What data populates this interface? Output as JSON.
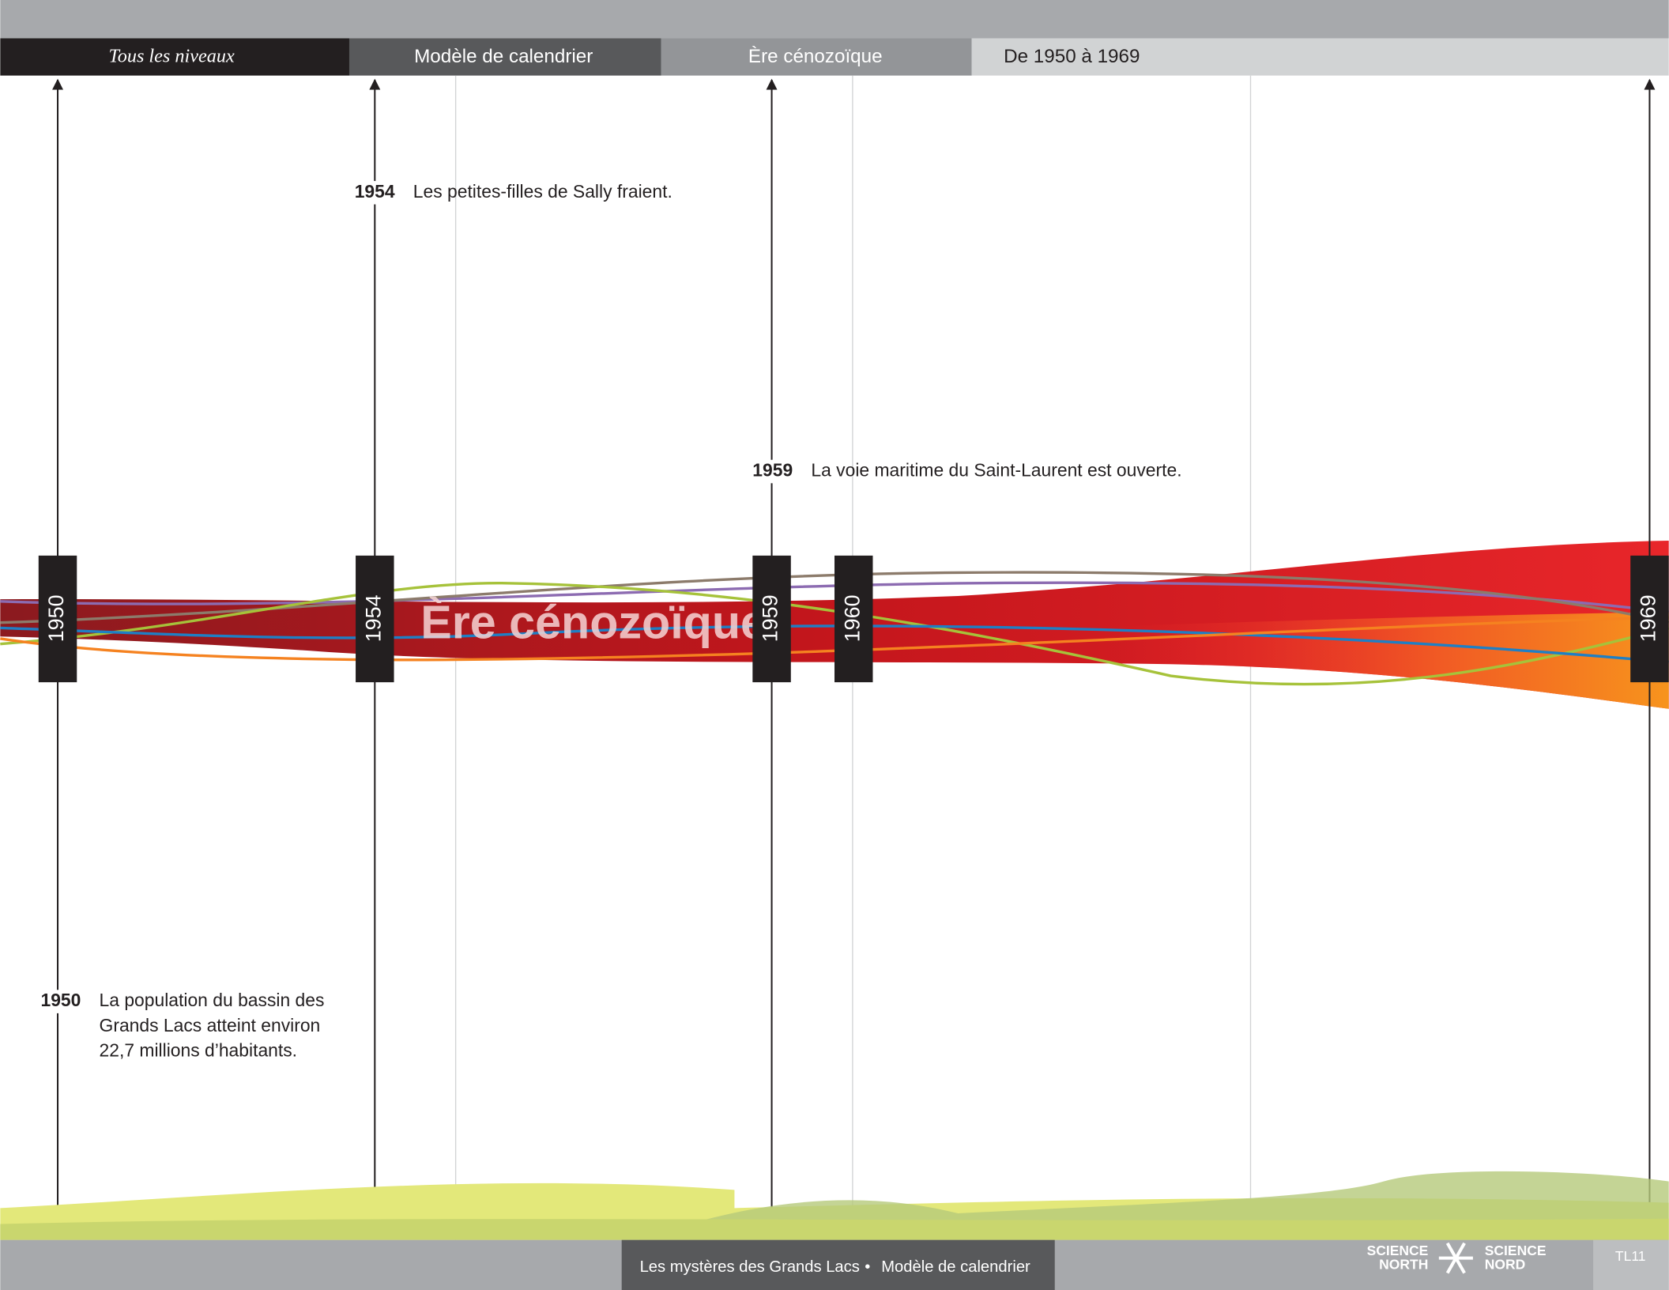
{
  "nav": [
    "Tous les niveaux",
    "Modèle de calendrier",
    "Ère cénozoïque",
    "De 1950 à 1969"
  ],
  "band_label": "Ère cénozoïque",
  "markers": [
    "1950",
    "1954",
    "1959",
    "1960",
    "1969"
  ],
  "events": [
    {
      "year": "1954",
      "lines": [
        "Les petites-filles de Sally fraient."
      ]
    },
    {
      "year": "1959",
      "lines": [
        "La voie maritime du Saint-Laurent est ouverte."
      ]
    },
    {
      "year": "1950",
      "lines": [
        "La population du bassin des",
        "Grands Lacs atteint environ",
        "22,7 millions d’habitants."
      ]
    }
  ],
  "footer": {
    "title": "Les mystères des Grands Lacs",
    "separator": "•",
    "subtitle": "Modèle de calendrier",
    "logo_left": [
      "SCIENCE",
      "NORTH"
    ],
    "logo_right": [
      "SCIENCE",
      "NORD"
    ],
    "page": "TL11"
  }
}
